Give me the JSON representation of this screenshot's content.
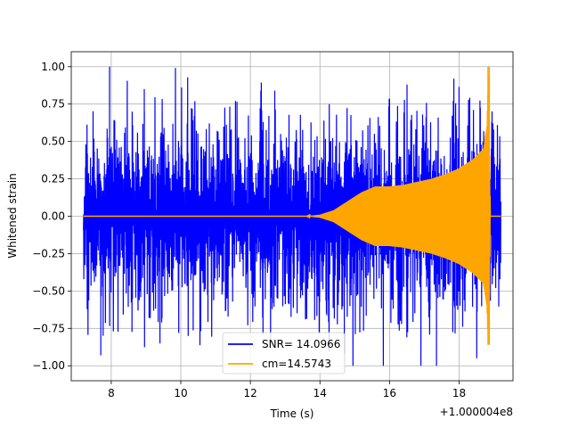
{
  "chart_data": {
    "type": "line",
    "title": "",
    "xlabel": "Time (s)",
    "ylabel": "Whitened strain",
    "x_offset_label": "+1.000004e8",
    "xlim": [
      6.85,
      19.55
    ],
    "ylim": [
      -1.1,
      1.1
    ],
    "xticks": [
      8,
      10,
      12,
      14,
      16,
      18
    ],
    "yticks": [
      -1.0,
      -0.75,
      -0.5,
      -0.25,
      0.0,
      0.25,
      0.5,
      0.75,
      1.0
    ],
    "xtick_labels": [
      "8",
      "10",
      "12",
      "14",
      "16",
      "18"
    ],
    "ytick_labels": [
      "−1.00",
      "−0.75",
      "−0.50",
      "−0.25",
      "0.00",
      "0.25",
      "0.50",
      "0.75",
      "1.00"
    ],
    "grid": true,
    "legend_position": "bottom-center",
    "series": [
      {
        "name": "SNR= 14.0966",
        "color": "#0000ff",
        "kind": "noise",
        "x_start": 7.2,
        "x_end": 19.2,
        "typical_amplitude": 0.55,
        "peak_max": 1.0,
        "peak_min": -1.0,
        "spikes": [
          {
            "x": 7.95,
            "y": 1.0
          },
          {
            "x": 8.95,
            "y": 0.85
          },
          {
            "x": 12.7,
            "y": 0.84
          },
          {
            "x": 17.85,
            "y": 0.92
          },
          {
            "x": 7.7,
            "y": -0.93
          },
          {
            "x": 9.4,
            "y": -0.85
          },
          {
            "x": 17.35,
            "y": -1.0
          },
          {
            "x": 14.7,
            "y": -0.92
          }
        ]
      },
      {
        "name": "cm=14.5743",
        "color": "#ffa500",
        "kind": "chirp",
        "x_start": 7.2,
        "x_end": 19.2,
        "envelope": [
          [
            7.2,
            0.0
          ],
          [
            13.6,
            0.0
          ],
          [
            14.0,
            0.01
          ],
          [
            14.4,
            0.04
          ],
          [
            14.8,
            0.1
          ],
          [
            15.2,
            0.16
          ],
          [
            15.6,
            0.2
          ],
          [
            16.0,
            0.2
          ],
          [
            16.4,
            0.21
          ],
          [
            16.8,
            0.23
          ],
          [
            17.2,
            0.25
          ],
          [
            17.6,
            0.28
          ],
          [
            18.0,
            0.32
          ],
          [
            18.4,
            0.38
          ],
          [
            18.7,
            0.45
          ],
          [
            18.8,
            0.6
          ],
          [
            18.85,
            1.0
          ],
          [
            18.9,
            0.0
          ],
          [
            19.2,
            0.0
          ]
        ],
        "peak_max": 1.0,
        "peak_min": -0.86
      }
    ]
  }
}
